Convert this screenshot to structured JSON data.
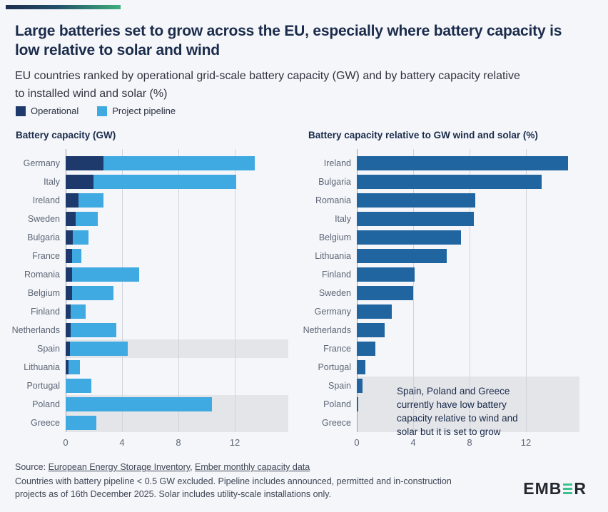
{
  "colors": {
    "operational": "#1e3a6c",
    "pipeline": "#3fa9e1",
    "relative_bar": "#2065a0",
    "highlight_band": "#e3e5e9",
    "accent_navy": "#1d2e4e",
    "accent_green": "#3fae7c",
    "logo_green": "#3cc18e"
  },
  "header": {
    "title": "Large batteries set to grow across the EU, especially where battery capacity is low relative to solar and wind",
    "subtitle": "EU countries ranked by operational grid-scale battery capacity (GW) and by battery capacity relative to installed wind and solar (%)",
    "legend": [
      {
        "label": "Operational",
        "color": "#1e3a6c"
      },
      {
        "label": "Project pipeline",
        "color": "#3fa9e1"
      }
    ]
  },
  "chart_data": [
    {
      "type": "bar",
      "subtype": "horizontal-stacked",
      "title": "Battery capacity (GW)",
      "categories": [
        "Germany",
        "Italy",
        "Ireland",
        "Sweden",
        "Bulgaria",
        "France",
        "Romania",
        "Belgium",
        "Finland",
        "Netherlands",
        "Spain",
        "Lithuania",
        "Portugal",
        "Poland",
        "Greece"
      ],
      "series": [
        {
          "name": "Operational",
          "values": [
            2.7,
            2.0,
            0.9,
            0.7,
            0.5,
            0.45,
            0.45,
            0.45,
            0.35,
            0.35,
            0.3,
            0.2,
            0,
            0,
            0
          ]
        },
        {
          "name": "Project pipeline",
          "values": [
            10.7,
            10.1,
            1.8,
            1.6,
            1.1,
            0.65,
            4.75,
            2.95,
            1.05,
            3.25,
            4.1,
            0.8,
            1.8,
            10.4,
            2.2
          ]
        }
      ],
      "xlim": [
        0,
        15.8
      ],
      "xticks": [
        0,
        4,
        8,
        12
      ],
      "grid": true,
      "highlighted_categories": [
        "Spain",
        "Poland",
        "Greece"
      ]
    },
    {
      "type": "bar",
      "subtype": "horizontal",
      "title": "Battery capacity relative to GW wind and solar (%)",
      "categories": [
        "Ireland",
        "Bulgaria",
        "Romania",
        "Italy",
        "Belgium",
        "Lithuania",
        "Finland",
        "Sweden",
        "Germany",
        "Netherlands",
        "France",
        "Portugal",
        "Spain",
        "Poland",
        "Greece"
      ],
      "values": [
        15.0,
        13.1,
        8.4,
        8.3,
        7.4,
        6.4,
        4.1,
        4.0,
        2.5,
        2.0,
        1.3,
        0.6,
        0.4,
        0.1,
        0
      ],
      "xlim": [
        0,
        15.8
      ],
      "xticks": [
        0,
        4,
        8,
        12
      ],
      "grid": true,
      "highlighted_categories": [
        "Spain",
        "Poland",
        "Greece"
      ],
      "annotation": "Spain, Poland and Greece\ncurrently have low battery\ncapacity relative to wind and\nsolar but it is set to grow"
    }
  ],
  "footer": {
    "source_prefix": "Source: ",
    "link1": "European Energy Storage Inventory",
    "separator": ", ",
    "link2": "Ember monthly capacity data",
    "note": "Countries with battery pipeline < 0.5 GW excluded. Pipeline includes announced, permitted and in-construction\nprojects as of 16th December 2025. Solar includes utility-scale installations only.",
    "logo_part1": "EMB",
    "logo_part2": "R"
  }
}
